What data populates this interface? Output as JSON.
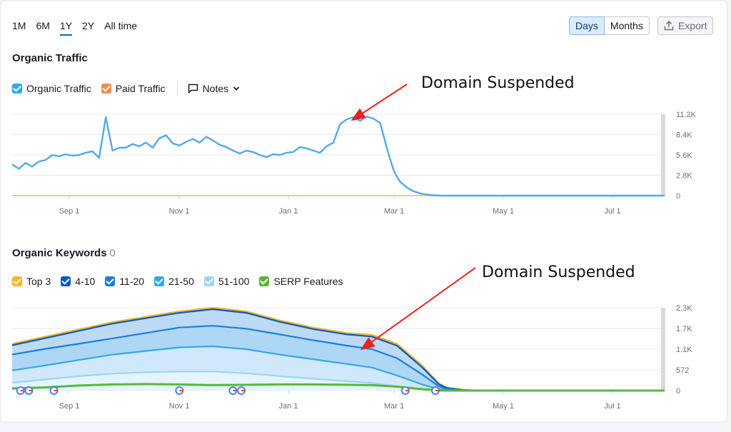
{
  "range_tabs": [
    {
      "label": "1M",
      "active": false
    },
    {
      "label": "6M",
      "active": false
    },
    {
      "label": "1Y",
      "active": true
    },
    {
      "label": "2Y",
      "active": false
    },
    {
      "label": "All time",
      "active": false
    }
  ],
  "view_toggle": {
    "days": "Days",
    "months": "Months",
    "selected": "Days"
  },
  "export_label": "Export",
  "traffic": {
    "title": "Organic Traffic",
    "legend": [
      {
        "label": "Organic Traffic",
        "color": "#2eaaf0",
        "checked": true
      },
      {
        "label": "Paid Traffic",
        "color": "#f58a4b",
        "checked": true
      }
    ],
    "notes_label": "Notes",
    "annotation": "Domain Suspended"
  },
  "keywords": {
    "title": "Organic Keywords",
    "count": "0",
    "legend": [
      {
        "label": "Top 3",
        "color": "#f5b52a"
      },
      {
        "label": "4-10",
        "color": "#0a5cb8"
      },
      {
        "label": "11-20",
        "color": "#1a7fdc"
      },
      {
        "label": "21-50",
        "color": "#36a6ee"
      },
      {
        "label": "51-100",
        "color": "#9fd3f7"
      },
      {
        "label": "SERP Features",
        "color": "#58b839"
      }
    ],
    "annotation": "Domain Suspended"
  },
  "chart_data": [
    {
      "type": "line",
      "title": "Organic Traffic",
      "x_ticks": [
        "Sep 1",
        "Nov 1",
        "Jan 1",
        "Mar 1",
        "May 1",
        "Jul 1"
      ],
      "y_ticks": [
        "11.2K",
        "8.4K",
        "5.6K",
        "2.8K",
        "0"
      ],
      "ylim": [
        0,
        11200
      ],
      "x_range": [
        "Jul 24",
        "Aug 18"
      ],
      "series": [
        {
          "name": "Organic Traffic",
          "color": "#55a9ea",
          "x_days": [
            0,
            4,
            8,
            12,
            16,
            20,
            24,
            28,
            32,
            36,
            40,
            44,
            48,
            52,
            56,
            60,
            64,
            68,
            72,
            76,
            80,
            84,
            88,
            92,
            96,
            100,
            104,
            108,
            112,
            116,
            120,
            124,
            128,
            132,
            136,
            140,
            144,
            148,
            152,
            156,
            160,
            164,
            168,
            172,
            176,
            180,
            184,
            188,
            192,
            196,
            200,
            204,
            208,
            212,
            216,
            220,
            224,
            228,
            230,
            232,
            236,
            240,
            244,
            248,
            252,
            256,
            260,
            264,
            268,
            272,
            276,
            280,
            284,
            288,
            292,
            296,
            300,
            310,
            320,
            330,
            340,
            350,
            360,
            370,
            380,
            390
          ],
          "values": [
            4300,
            3700,
            4500,
            4000,
            4700,
            4900,
            5600,
            5400,
            5700,
            5500,
            5600,
            5900,
            6100,
            5200,
            10800,
            6200,
            6600,
            6600,
            7100,
            6800,
            7300,
            6600,
            7900,
            8300,
            7200,
            6900,
            7400,
            7800,
            7300,
            8100,
            7600,
            7000,
            6700,
            6200,
            5800,
            6200,
            6000,
            5600,
            5300,
            5700,
            5600,
            5900,
            6000,
            6700,
            6500,
            6200,
            5900,
            6800,
            7300,
            9800,
            10500,
            10800,
            10300,
            10900,
            10600,
            10000,
            6500,
            3500,
            2600,
            1900,
            1100,
            600,
            300,
            150,
            50,
            0,
            0,
            0,
            0,
            0,
            0,
            0,
            0,
            0,
            0,
            0,
            0,
            0,
            0,
            0,
            0,
            0,
            0,
            0,
            0,
            0
          ]
        },
        {
          "name": "Paid Traffic",
          "color": "#f0c3a3",
          "values": [
            0
          ]
        }
      ]
    },
    {
      "type": "area",
      "title": "Organic Keywords",
      "x_ticks": [
        "Sep 1",
        "Nov 1",
        "Jan 1",
        "Mar 1",
        "May 1",
        "Jul 1"
      ],
      "y_ticks": [
        "2.3K",
        "1.7K",
        "1.1K",
        "572",
        "0"
      ],
      "ylim": [
        0,
        2300
      ],
      "x_days": [
        0,
        20,
        40,
        60,
        80,
        100,
        120,
        140,
        160,
        180,
        200,
        215,
        230,
        245,
        255,
        260,
        270,
        280,
        300,
        330,
        360,
        390
      ],
      "series": [
        {
          "name": "Top 3",
          "color": "#f5b52a",
          "values": [
            1300,
            1500,
            1700,
            1900,
            2050,
            2200,
            2300,
            2200,
            1950,
            1750,
            1600,
            1550,
            1300,
            700,
            200,
            80,
            20,
            0,
            0,
            0,
            0,
            0
          ]
        },
        {
          "name": "4-10",
          "color": "#0a5cb8",
          "values": [
            1260,
            1460,
            1660,
            1860,
            2010,
            2160,
            2260,
            2160,
            1910,
            1710,
            1560,
            1500,
            1250,
            650,
            180,
            70,
            15,
            0,
            0,
            0,
            0,
            0
          ]
        },
        {
          "name": "11-20",
          "color": "#1a7fdc",
          "values": [
            1000,
            1160,
            1300,
            1450,
            1600,
            1750,
            1800,
            1720,
            1560,
            1400,
            1250,
            1150,
            900,
            450,
            120,
            40,
            10,
            0,
            0,
            0,
            0,
            0
          ]
        },
        {
          "name": "21-50",
          "color": "#36a6ee",
          "values": [
            560,
            700,
            850,
            1000,
            1100,
            1200,
            1230,
            1150,
            1000,
            870,
            740,
            640,
            420,
            170,
            40,
            15,
            5,
            0,
            0,
            0,
            0,
            0
          ]
        },
        {
          "name": "51-100",
          "color": "#9fd3f7",
          "values": [
            220,
            310,
            400,
            470,
            510,
            530,
            530,
            480,
            400,
            330,
            260,
            210,
            120,
            40,
            10,
            5,
            0,
            0,
            0,
            0,
            0,
            0
          ]
        },
        {
          "name": "SERP Features",
          "color": "#58b839",
          "values": [
            60,
            90,
            140,
            170,
            180,
            170,
            150,
            160,
            170,
            170,
            160,
            150,
            110,
            40,
            5,
            0,
            0,
            0,
            0,
            0,
            0,
            0
          ]
        }
      ],
      "google_update_markers_days": [
        5,
        10,
        25,
        100,
        132,
        137,
        235,
        253
      ]
    }
  ]
}
